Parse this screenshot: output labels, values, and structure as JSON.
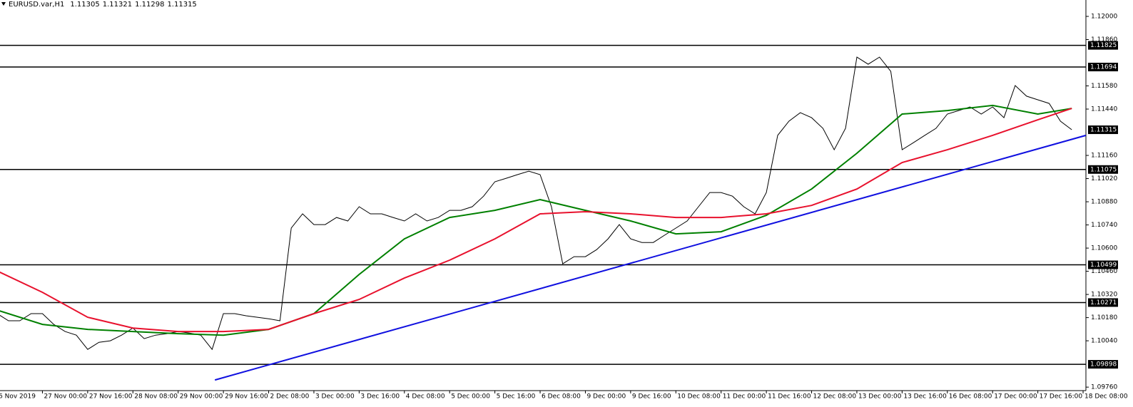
{
  "chart_data": {
    "type": "line",
    "symbol": "EURUSD.var,H1",
    "ohlc": [
      1.11305,
      1.11321,
      1.11298,
      1.11315
    ],
    "last_price": 1.11315,
    "xlim": [
      -15,
      369
    ],
    "ylim": [
      1.09739,
      1.12099
    ],
    "xticks": [
      {
        "value": -16,
        "label": "6 Nov 2019"
      },
      {
        "value": 0,
        "label": "27 Nov 00:00"
      },
      {
        "value": 16,
        "label": "27 Nov 16:00"
      },
      {
        "value": 32,
        "label": "28 Nov 08:00"
      },
      {
        "value": 48,
        "label": "29 Nov 00:00"
      },
      {
        "value": 64,
        "label": "29 Nov 16:00"
      },
      {
        "value": 80,
        "label": "2 Dec 08:00"
      },
      {
        "value": 96,
        "label": "3 Dec 00:00"
      },
      {
        "value": 112,
        "label": "3 Dec 16:00"
      },
      {
        "value": 128,
        "label": "4 Dec 08:00"
      },
      {
        "value": 144,
        "label": "5 Dec 00:00"
      },
      {
        "value": 160,
        "label": "5 Dec 16:00"
      },
      {
        "value": 176,
        "label": "6 Dec 08:00"
      },
      {
        "value": 192,
        "label": "9 Dec 00:00"
      },
      {
        "value": 208,
        "label": "9 Dec 16:00"
      },
      {
        "value": 224,
        "label": "10 Dec 08:00"
      },
      {
        "value": 240,
        "label": "11 Dec 00:00"
      },
      {
        "value": 256,
        "label": "11 Dec 16:00"
      },
      {
        "value": 272,
        "label": "12 Dec 08:00"
      },
      {
        "value": 288,
        "label": "13 Dec 00:00"
      },
      {
        "value": 304,
        "label": "13 Dec 16:00"
      },
      {
        "value": 320,
        "label": "16 Dec 08:00"
      },
      {
        "value": 336,
        "label": "17 Dec 00:00"
      },
      {
        "value": 352,
        "label": "17 Dec 16:00"
      },
      {
        "value": 368,
        "label": "18 Dec 08:00"
      }
    ],
    "yticks": [
      {
        "value": 1.12,
        "label": "1.12000"
      },
      {
        "value": 1.1186,
        "label": "1.11860"
      },
      {
        "value": 1.1158,
        "label": "1.11580"
      },
      {
        "value": 1.1144,
        "label": "1.11440"
      },
      {
        "value": 1.1116,
        "label": "1.11160"
      },
      {
        "value": 1.1102,
        "label": "1.11020"
      },
      {
        "value": 1.1088,
        "label": "1.10880"
      },
      {
        "value": 1.1074,
        "label": "1.10740"
      },
      {
        "value": 1.106,
        "label": "1.10600"
      },
      {
        "value": 1.1046,
        "label": "1.10460"
      },
      {
        "value": 1.1032,
        "label": "1.10320"
      },
      {
        "value": 1.1018,
        "label": "1.10180"
      },
      {
        "value": 1.1004,
        "label": "1.10040"
      },
      {
        "value": 1.0976,
        "label": "1.09760"
      }
    ],
    "levels": [
      1.11825,
      1.11694,
      1.11075,
      1.10499,
      1.10271,
      1.09898
    ],
    "series": [
      {
        "color": "#000000",
        "x": [
          -16,
          -12,
          -8,
          -4,
          0,
          4,
          8,
          12,
          16,
          20,
          24,
          28,
          32,
          36,
          40,
          44,
          48,
          52,
          56,
          60,
          64,
          68,
          72,
          76,
          80,
          84,
          88,
          92,
          96,
          100,
          104,
          108,
          112,
          116,
          120,
          124,
          128,
          132,
          136,
          140,
          144,
          148,
          152,
          156,
          160,
          164,
          168,
          172,
          176,
          180,
          184,
          188,
          192,
          196,
          200,
          204,
          208,
          212,
          216,
          220,
          224,
          228,
          232,
          236,
          240,
          244,
          248,
          252,
          256,
          260,
          264,
          268,
          272,
          276,
          280,
          284,
          288,
          292,
          296,
          300,
          304,
          308,
          312,
          316,
          320,
          324,
          328,
          332,
          336,
          340,
          344,
          348,
          352,
          356,
          360,
          364
        ],
        "values": [
          1.10204,
          1.10161,
          1.10161,
          1.10204,
          1.10204,
          1.10139,
          1.10096,
          1.10074,
          1.09988,
          1.10031,
          1.1004,
          1.10074,
          1.10117,
          1.10053,
          1.10074,
          1.10083,
          1.10096,
          1.10087,
          1.10074,
          1.09988,
          1.10204,
          1.10204,
          1.10191,
          1.10182,
          1.10173,
          1.10161,
          1.10721,
          1.10807,
          1.10742,
          1.10742,
          1.10785,
          1.10764,
          1.1085,
          1.10807,
          1.10807,
          1.10785,
          1.10764,
          1.10807,
          1.10764,
          1.10785,
          1.10828,
          1.10828,
          1.1085,
          1.10914,
          1.11001,
          1.11022,
          1.11044,
          1.11065,
          1.11044,
          1.1085,
          1.10505,
          1.10548,
          1.10548,
          1.10591,
          1.10656,
          1.10742,
          1.10656,
          1.10634,
          1.10634,
          1.10678,
          1.10721,
          1.10764,
          1.1085,
          1.10936,
          1.10936,
          1.10914,
          1.1085,
          1.10807,
          1.10936,
          1.11281,
          1.11367,
          1.11418,
          1.11388,
          1.11324,
          1.11194,
          1.11324,
          1.11754,
          1.11711,
          1.11754,
          1.11668,
          1.11194,
          1.11237,
          1.11281,
          1.11324,
          1.1141,
          1.11431,
          1.11453,
          1.1141,
          1.11453,
          1.11388,
          1.11582,
          1.11518,
          1.11496,
          1.11474,
          1.11367,
          1.11315
        ]
      },
      {
        "color": "#008000",
        "x": [
          -16,
          0,
          16,
          32,
          48,
          64,
          80,
          96,
          112,
          128,
          144,
          160,
          176,
          192,
          208,
          224,
          240,
          256,
          272,
          288,
          304,
          320,
          336,
          352,
          364
        ],
        "values": [
          1.10225,
          1.10139,
          1.10109,
          1.10096,
          1.10083,
          1.10074,
          1.10109,
          1.10204,
          1.10441,
          1.10656,
          1.10785,
          1.10828,
          1.10893,
          1.10828,
          1.10764,
          1.10686,
          1.10699,
          1.10798,
          1.10957,
          1.11173,
          1.1141,
          1.11431,
          1.11462,
          1.1141,
          1.11444
        ]
      },
      {
        "color": "#e8112d",
        "x": [
          -16,
          0,
          16,
          32,
          48,
          64,
          80,
          96,
          112,
          128,
          144,
          160,
          176,
          192,
          208,
          224,
          240,
          256,
          272,
          288,
          304,
          320,
          336,
          352,
          364
        ],
        "values": [
          1.10462,
          1.10333,
          1.10182,
          1.10117,
          1.10096,
          1.10096,
          1.10109,
          1.10204,
          1.1029,
          1.10419,
          1.10527,
          1.10656,
          1.10807,
          1.1082,
          1.10807,
          1.10785,
          1.10785,
          1.10807,
          1.10858,
          1.10957,
          1.11117,
          1.11194,
          1.11281,
          1.11375,
          1.11444
        ]
      },
      {
        "color": "#1010e0",
        "x": [
          61,
          369
        ],
        "values": [
          1.09803,
          1.11281
        ]
      }
    ]
  }
}
